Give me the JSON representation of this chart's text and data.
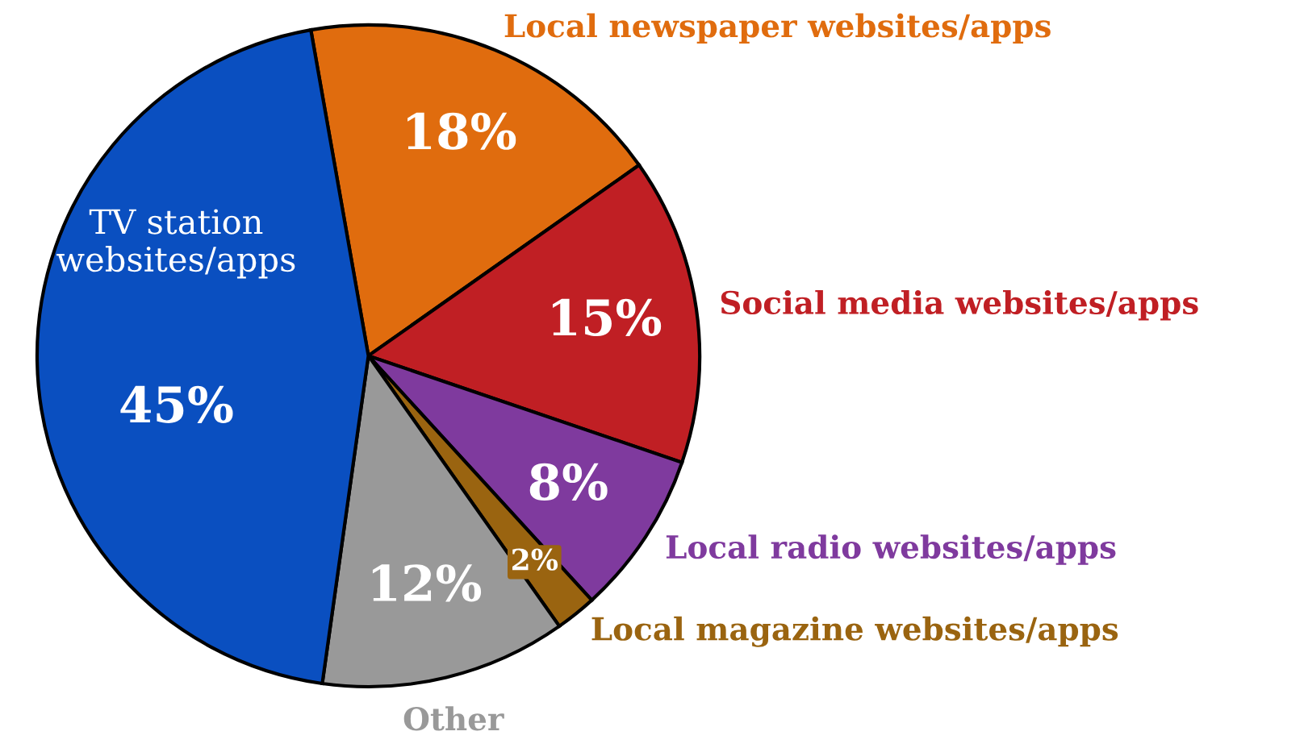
{
  "chart_data": {
    "type": "pie",
    "categories": [
      "Local newspaper websites/apps",
      "Social media websites/apps",
      "Local radio websites/apps",
      "Local magazine websites/apps",
      "Other",
      "TV station websites/apps"
    ],
    "values": [
      18,
      15,
      8,
      2,
      12,
      45
    ],
    "colors": [
      "#e06c0e",
      "#c01f24",
      "#7f3a9e",
      "#9a6410",
      "#999999",
      "#0a4fc0"
    ],
    "value_labels": [
      "18%",
      "15%",
      "8%",
      "2%",
      "12%",
      "45%"
    ]
  }
}
